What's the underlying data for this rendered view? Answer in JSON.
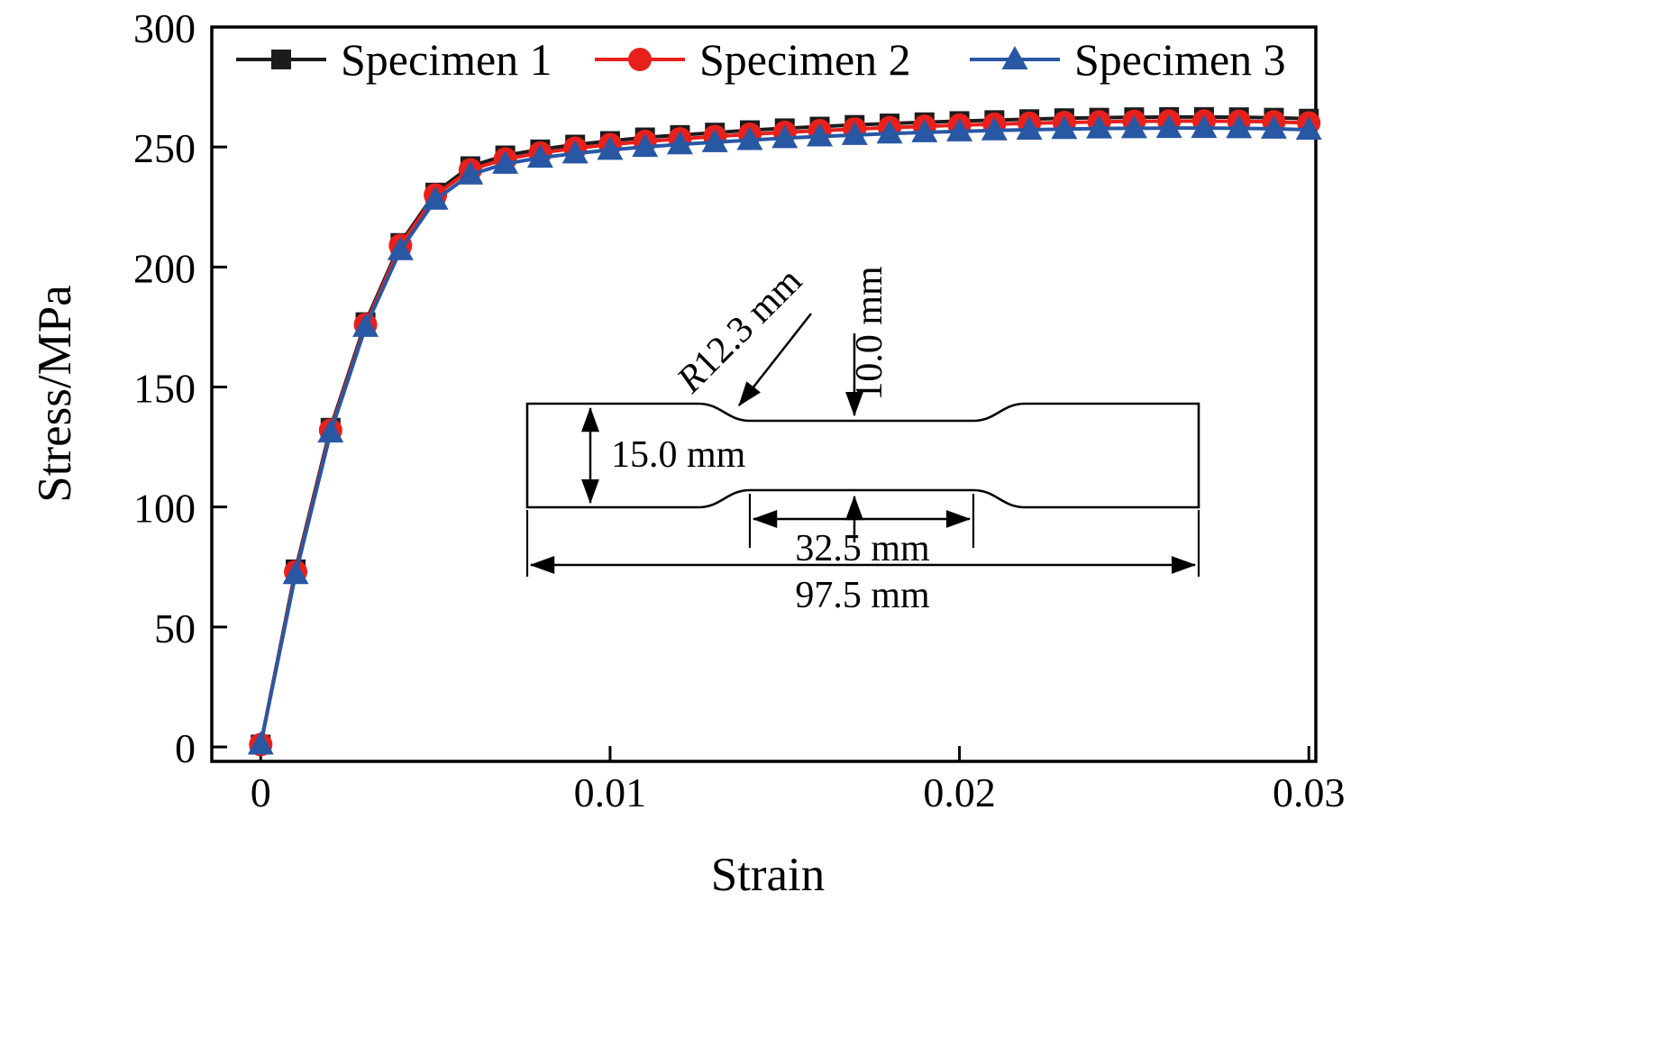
{
  "chart_data": {
    "type": "line",
    "title": "",
    "xlabel": "Strain",
    "ylabel": "Stress/MPa",
    "xlim": [
      0,
      0.03
    ],
    "ylim": [
      0,
      300
    ],
    "grid": false,
    "legend_position": "top-inside",
    "xticks": [
      {
        "value": 0,
        "label": "0"
      },
      {
        "value": 0.01,
        "label": "0.01"
      },
      {
        "value": 0.02,
        "label": "0.02"
      },
      {
        "value": 0.03,
        "label": "0.03"
      }
    ],
    "yticks": [
      {
        "value": 0,
        "label": "0"
      },
      {
        "value": 50,
        "label": "50"
      },
      {
        "value": 100,
        "label": "100"
      },
      {
        "value": 150,
        "label": "150"
      },
      {
        "value": 200,
        "label": "200"
      },
      {
        "value": 250,
        "label": "250"
      },
      {
        "value": 300,
        "label": "300"
      }
    ],
    "x": [
      0,
      0.001,
      0.002,
      0.003,
      0.004,
      0.005,
      0.006,
      0.007,
      0.008,
      0.009,
      0.01,
      0.011,
      0.012,
      0.013,
      0.014,
      0.015,
      0.016,
      0.017,
      0.018,
      0.019,
      0.02,
      0.021,
      0.022,
      0.023,
      0.024,
      0.025,
      0.026,
      0.027,
      0.028,
      0.029,
      0.03
    ],
    "series": [
      {
        "name": "Specimen 1",
        "marker": "square",
        "color": "#1c1c1c",
        "values": [
          1,
          74,
          133,
          177,
          210,
          231,
          242,
          246.5,
          249,
          251,
          252.5,
          254,
          255,
          256,
          257,
          257.8,
          258.5,
          259.2,
          259.8,
          260.3,
          260.8,
          261.2,
          261.6,
          262,
          262.2,
          262.4,
          262.5,
          262.5,
          262.4,
          262.2,
          261.8
        ]
      },
      {
        "name": "Specimen 2",
        "marker": "circle",
        "color": "#e8201c",
        "values": [
          1,
          73,
          132,
          176,
          209,
          230,
          240.5,
          245,
          247.5,
          249.5,
          251,
          252.3,
          253.4,
          254.4,
          255.3,
          256.1,
          256.8,
          257.5,
          258.1,
          258.6,
          259.1,
          259.5,
          259.9,
          260.2,
          260.5,
          260.7,
          260.8,
          260.8,
          260.7,
          260.5,
          260
        ]
      },
      {
        "name": "Specimen 3",
        "marker": "triangle",
        "color": "#2857a4",
        "values": [
          1,
          72,
          131,
          175,
          207,
          228,
          238.5,
          243,
          245.5,
          247.3,
          248.8,
          250,
          251.1,
          252,
          252.9,
          253.7,
          254.4,
          255,
          255.6,
          256.1,
          256.5,
          256.9,
          257.2,
          257.5,
          257.7,
          257.8,
          257.9,
          257.9,
          257.8,
          257.6,
          257.2
        ]
      }
    ]
  },
  "inset": {
    "radius_prefix": "R",
    "radius_value": "12.3 mm",
    "gauge_width": "10.0 mm",
    "grip_width": "15.0 mm",
    "gauge_length": "32.5 mm",
    "total_length": "97.5 mm"
  }
}
